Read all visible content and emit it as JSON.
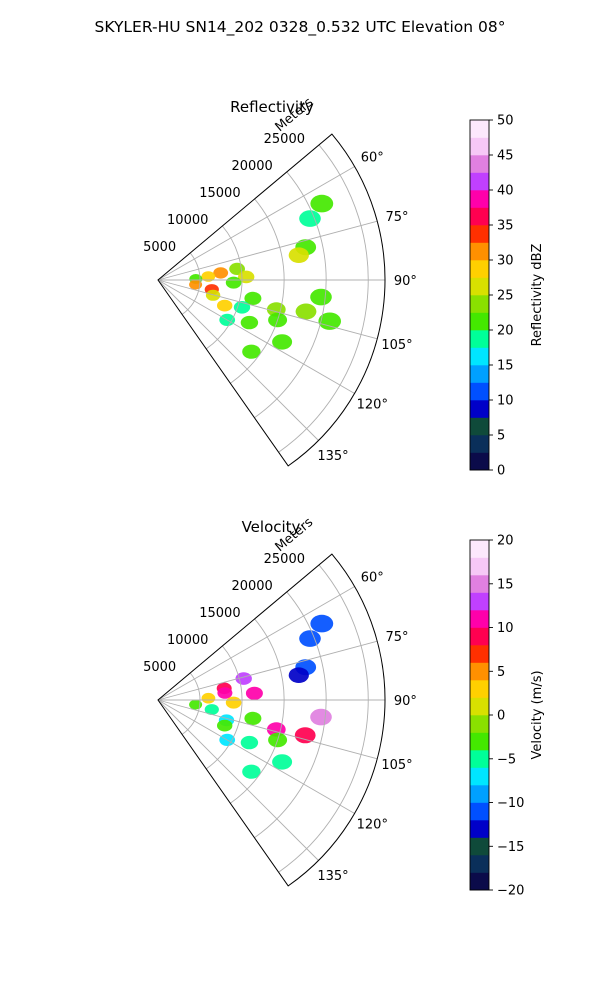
{
  "figure_title": "SKYLER-HU  SN14_202  0328_0.532 UTC Elevation 08°",
  "chart_data": [
    {
      "type": "heatmap",
      "subtype": "polar-sector-ppi",
      "title": "Reflectivity",
      "radial_axis_label": "Meters",
      "range_ticks": [
        5000,
        10000,
        15000,
        20000,
        25000
      ],
      "range_tick_labels": [
        "5000",
        "10000",
        "15000",
        "20000",
        "25000"
      ],
      "range_limit": [
        0,
        27000
      ],
      "azimuth_range_deg": [
        50,
        145
      ],
      "azimuth_ticks": [
        60,
        75,
        90,
        105,
        120,
        135
      ],
      "azimuth_tick_labels": [
        "60°",
        "75°",
        "90°",
        "105°",
        "120°",
        "135°"
      ],
      "grid": true,
      "colorbar": {
        "label": "Reflectivity dBZ",
        "limits": [
          0,
          50
        ],
        "ticks": [
          0,
          5,
          10,
          15,
          20,
          25,
          30,
          35,
          40,
          45,
          50
        ],
        "tick_labels": [
          "0",
          "5",
          "10",
          "15",
          "20",
          "25",
          "30",
          "35",
          "40",
          "45",
          "50"
        ],
        "colors": [
          "#0b0b4a",
          "#0a2f5a",
          "#0f4a3a",
          "#0000c8",
          "#0050ff",
          "#00a0ff",
          "#00e6ff",
          "#00ff99",
          "#44e800",
          "#8ae000",
          "#d8e000",
          "#ffd000",
          "#ff9000",
          "#ff3000",
          "#ff0050",
          "#ff00aa",
          "#c040ff",
          "#e080e0",
          "#f6c8f6",
          "#fce8fc"
        ]
      },
      "echo_cells": [
        {
          "az": 65.0,
          "r": 21500,
          "val": 20
        },
        {
          "az": 68.0,
          "r": 19500,
          "val": 18
        },
        {
          "az": 77.5,
          "r": 18000,
          "val": 22
        },
        {
          "az": 80.0,
          "r": 17000,
          "val": 26
        },
        {
          "az": 82.0,
          "r": 9500,
          "val": 24
        },
        {
          "az": 83.5,
          "r": 7500,
          "val": 30
        },
        {
          "az": 86.0,
          "r": 6000,
          "val": 28
        },
        {
          "az": 88.0,
          "r": 10500,
          "val": 25
        },
        {
          "az": 88.5,
          "r": 4500,
          "val": 22
        },
        {
          "az": 92.0,
          "r": 9000,
          "val": 22
        },
        {
          "az": 96.0,
          "r": 19500,
          "val": 20
        },
        {
          "az": 97.0,
          "r": 4500,
          "val": 30
        },
        {
          "az": 100.0,
          "r": 6500,
          "val": 33
        },
        {
          "az": 101.0,
          "r": 11500,
          "val": 22
        },
        {
          "az": 102.0,
          "r": 18000,
          "val": 24
        },
        {
          "az": 103.5,
          "r": 21000,
          "val": 22
        },
        {
          "az": 104.0,
          "r": 14500,
          "val": 24
        },
        {
          "az": 105.5,
          "r": 6800,
          "val": 26
        },
        {
          "az": 108.0,
          "r": 10500,
          "val": 18
        },
        {
          "az": 108.5,
          "r": 15000,
          "val": 22
        },
        {
          "az": 111.0,
          "r": 8500,
          "val": 28
        },
        {
          "az": 115.0,
          "r": 12000,
          "val": 20
        },
        {
          "az": 116.5,
          "r": 16500,
          "val": 22
        },
        {
          "az": 120.0,
          "r": 9500,
          "val": 18
        },
        {
          "az": 127.5,
          "r": 14000,
          "val": 20
        }
      ]
    },
    {
      "type": "heatmap",
      "subtype": "polar-sector-ppi",
      "title": "Velocity",
      "radial_axis_label": "Meters",
      "range_ticks": [
        5000,
        10000,
        15000,
        20000,
        25000
      ],
      "range_tick_labels": [
        "5000",
        "10000",
        "15000",
        "20000",
        "25000"
      ],
      "range_limit": [
        0,
        27000
      ],
      "azimuth_range_deg": [
        50,
        145
      ],
      "azimuth_ticks": [
        60,
        75,
        90,
        105,
        120,
        135
      ],
      "azimuth_tick_labels": [
        "60°",
        "75°",
        "90°",
        "105°",
        "120°",
        "135°"
      ],
      "grid": true,
      "colorbar": {
        "label": "Velocity (m/s)",
        "limits": [
          -20,
          20
        ],
        "ticks": [
          -20,
          -15,
          -10,
          -5,
          0,
          5,
          10,
          15,
          20
        ],
        "tick_labels": [
          "−20",
          "−15",
          "−10",
          "−5",
          "0",
          "5",
          "10",
          "15",
          "20"
        ],
        "colors": [
          "#0b0b4a",
          "#0a2f5a",
          "#0f4a3a",
          "#0000c8",
          "#0050ff",
          "#00a0ff",
          "#00e6ff",
          "#00ff99",
          "#44e800",
          "#8ae000",
          "#d8e000",
          "#ffd000",
          "#ff9000",
          "#ff3000",
          "#ff0050",
          "#ff00aa",
          "#c040ff",
          "#e080e0",
          "#f6c8f6",
          "#fce8fc"
        ]
      },
      "echo_cells": [
        {
          "az": 65.0,
          "r": 21500,
          "val": -11
        },
        {
          "az": 68.0,
          "r": 19500,
          "val": -12
        },
        {
          "az": 77.5,
          "r": 18000,
          "val": -12
        },
        {
          "az": 80.0,
          "r": 17000,
          "val": -13
        },
        {
          "az": 76.0,
          "r": 10500,
          "val": 13
        },
        {
          "az": 80.0,
          "r": 8000,
          "val": 8
        },
        {
          "az": 84.0,
          "r": 8000,
          "val": 10
        },
        {
          "az": 86.0,
          "r": 11500,
          "val": 10
        },
        {
          "az": 88.0,
          "r": 6000,
          "val": 2
        },
        {
          "az": 92.0,
          "r": 9000,
          "val": 3
        },
        {
          "az": 96.0,
          "r": 19500,
          "val": 14
        },
        {
          "az": 97.0,
          "r": 4500,
          "val": -3
        },
        {
          "az": 100.0,
          "r": 6500,
          "val": -5
        },
        {
          "az": 101.0,
          "r": 11500,
          "val": -4
        },
        {
          "az": 103.5,
          "r": 18000,
          "val": 9
        },
        {
          "az": 104.0,
          "r": 14500,
          "val": 10
        },
        {
          "az": 106.5,
          "r": 8500,
          "val": -7
        },
        {
          "az": 108.5,
          "r": 15000,
          "val": -3
        },
        {
          "az": 111.0,
          "r": 8500,
          "val": -4
        },
        {
          "az": 115.0,
          "r": 12000,
          "val": -6
        },
        {
          "az": 116.5,
          "r": 16500,
          "val": -6
        },
        {
          "az": 120.0,
          "r": 9500,
          "val": -8
        },
        {
          "az": 127.5,
          "r": 14000,
          "val": -6
        }
      ]
    }
  ]
}
